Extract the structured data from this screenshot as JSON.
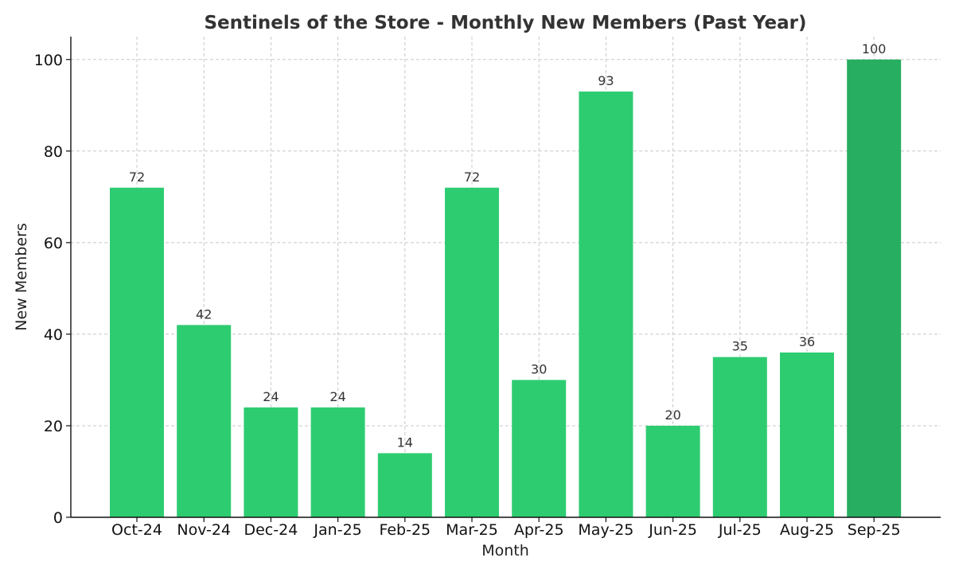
{
  "chart_data": {
    "type": "bar",
    "title": "Sentinels of the Store - Monthly New Members (Past Year)",
    "xlabel": "Month",
    "ylabel": "New Members",
    "categories": [
      "Oct-24",
      "Nov-24",
      "Dec-24",
      "Jan-25",
      "Feb-25",
      "Mar-25",
      "Apr-25",
      "May-25",
      "Jun-25",
      "Jul-25",
      "Aug-25",
      "Sep-25"
    ],
    "values": [
      72,
      42,
      24,
      24,
      14,
      72,
      30,
      93,
      20,
      35,
      36,
      100
    ],
    "ylim": [
      0,
      105
    ],
    "yticks": [
      0,
      20,
      40,
      60,
      80,
      100
    ],
    "grid": true,
    "colors": {
      "bar": "#2ecc71",
      "highlight": "#27ae60"
    },
    "highlight_index": 11
  }
}
